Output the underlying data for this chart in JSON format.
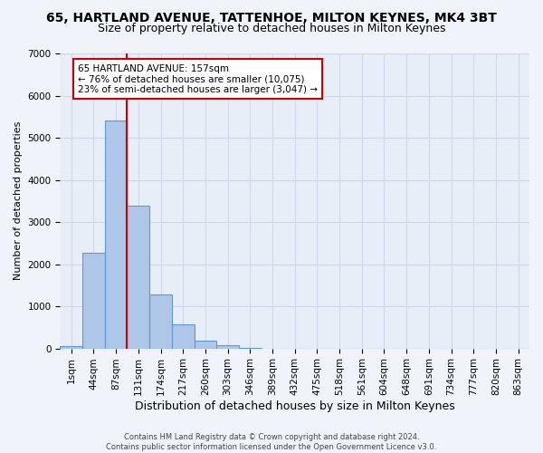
{
  "title1": "65, HARTLAND AVENUE, TATTENHOE, MILTON KEYNES, MK4 3BT",
  "title2": "Size of property relative to detached houses in Milton Keynes",
  "xlabel": "Distribution of detached houses by size in Milton Keynes",
  "ylabel": "Number of detached properties",
  "footer1": "Contains HM Land Registry data © Crown copyright and database right 2024.",
  "footer2": "Contains public sector information licensed under the Open Government Licence v3.0.",
  "bin_labels": [
    "1sqm",
    "44sqm",
    "87sqm",
    "131sqm",
    "174sqm",
    "217sqm",
    "260sqm",
    "303sqm",
    "346sqm",
    "389sqm",
    "432sqm",
    "475sqm",
    "518sqm",
    "561sqm",
    "604sqm",
    "648sqm",
    "691sqm",
    "734sqm",
    "777sqm",
    "820sqm",
    "863sqm"
  ],
  "bar_values": [
    50,
    2270,
    5400,
    3380,
    1280,
    580,
    190,
    80,
    10,
    0,
    0,
    0,
    0,
    0,
    0,
    0,
    0,
    0,
    0,
    0,
    0
  ],
  "bar_color": "#aec6e8",
  "bar_edge_color": "#5b9bd5",
  "vline_x": 2.5,
  "vline_color": "#cc0000",
  "annotation_text": "65 HARTLAND AVENUE: 157sqm\n← 76% of detached houses are smaller (10,075)\n23% of semi-detached houses are larger (3,047) →",
  "annotation_box_color": "#ffffff",
  "annotation_box_edge": "#cc0000",
  "ylim": [
    0,
    7000
  ],
  "yticks": [
    0,
    1000,
    2000,
    3000,
    4000,
    5000,
    6000,
    7000
  ],
  "grid_color": "#d0d8e8",
  "bg_color": "#e8eef8",
  "fig_bg_color": "#f0f4fa",
  "title1_fontsize": 10,
  "title2_fontsize": 9,
  "xlabel_fontsize": 9,
  "ylabel_fontsize": 8,
  "annotation_fontsize": 7.5,
  "tick_fontsize": 7.5,
  "footer_fontsize": 6
}
